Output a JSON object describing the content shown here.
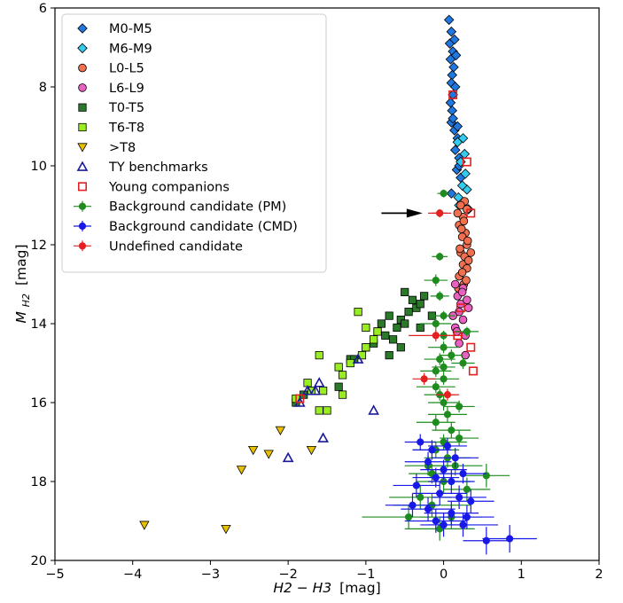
{
  "chart_data": {
    "type": "scatter",
    "xlabel_main": "H2 − H3",
    "xlabel_unit": "[mag]",
    "ylabel_main": "M",
    "ylabel_sub": "H2",
    "ylabel_unit": "[mag]",
    "xlim": [
      -5,
      2
    ],
    "ylim": [
      20,
      6
    ],
    "y_inverted": true,
    "x_ticks": [
      "−5",
      "−4",
      "−3",
      "−2",
      "−1",
      "0",
      "1",
      "2"
    ],
    "x_tick_values": [
      -5,
      -4,
      -3,
      -2,
      -1,
      0,
      1,
      2
    ],
    "y_ticks": [
      "6",
      "8",
      "10",
      "12",
      "14",
      "16",
      "18",
      "20"
    ],
    "y_tick_values": [
      6,
      8,
      10,
      12,
      14,
      16,
      18,
      20
    ],
    "grid": false,
    "legend_position": "top-left",
    "annotation": {
      "type": "arrow",
      "direction": "right",
      "from": [
        -0.8,
        11.2
      ],
      "to": [
        -0.27,
        11.2
      ]
    },
    "series": [
      {
        "name": "M0-M5",
        "marker": "diamond",
        "color": "#1f77e0",
        "points": [
          [
            0.07,
            6.3
          ],
          [
            0.1,
            6.6
          ],
          [
            0.08,
            6.9
          ],
          [
            0.12,
            7.1
          ],
          [
            0.09,
            7.3
          ],
          [
            0.13,
            7.5
          ],
          [
            0.11,
            7.7
          ],
          [
            0.1,
            7.9
          ],
          [
            0.15,
            8.0
          ],
          [
            0.12,
            8.2
          ],
          [
            0.09,
            8.4
          ],
          [
            0.11,
            8.6
          ],
          [
            0.1,
            8.9
          ],
          [
            0.14,
            9.1
          ],
          [
            0.18,
            9.3
          ],
          [
            0.15,
            9.6
          ],
          [
            0.2,
            9.8
          ],
          [
            0.17,
            10.1
          ],
          [
            0.22,
            10.3
          ],
          [
            0.1,
            10.7
          ],
          [
            0.14,
            6.8
          ],
          [
            0.16,
            7.2
          ],
          [
            0.12,
            8.8
          ],
          [
            0.18,
            9.0
          ],
          [
            0.2,
            10.0
          ]
        ]
      },
      {
        "name": "M6-M9",
        "marker": "diamond",
        "color": "#33ccee",
        "points": [
          [
            0.18,
            9.4
          ],
          [
            0.25,
            9.3
          ],
          [
            0.22,
            9.9
          ],
          [
            0.28,
            10.2
          ],
          [
            0.3,
            10.6
          ],
          [
            0.24,
            10.5
          ],
          [
            0.2,
            11.0
          ],
          [
            0.32,
            11.1
          ],
          [
            0.27,
            9.7
          ],
          [
            0.19,
            10.8
          ]
        ]
      },
      {
        "name": "L0-L5",
        "marker": "circle",
        "color": "#f07050",
        "points": [
          [
            0.27,
            10.9
          ],
          [
            0.22,
            11.0
          ],
          [
            0.3,
            11.1
          ],
          [
            0.25,
            11.3
          ],
          [
            0.2,
            11.5
          ],
          [
            0.28,
            11.7
          ],
          [
            0.24,
            11.8
          ],
          [
            0.3,
            12.0
          ],
          [
            0.22,
            12.2
          ],
          [
            0.27,
            12.3
          ],
          [
            0.25,
            12.5
          ],
          [
            0.3,
            12.6
          ],
          [
            0.2,
            12.8
          ],
          [
            0.26,
            13.0
          ],
          [
            0.32,
            12.4
          ],
          [
            0.18,
            11.2
          ],
          [
            0.29,
            12.9
          ],
          [
            0.23,
            11.6
          ],
          [
            0.31,
            11.9
          ],
          [
            0.21,
            12.1
          ],
          [
            0.35,
            12.2
          ],
          [
            0.26,
            11.4
          ],
          [
            0.24,
            12.7
          ],
          [
            0.19,
            13.1
          ]
        ]
      },
      {
        "name": "L6-L9",
        "marker": "circle",
        "color": "#e860c0",
        "points": [
          [
            0.15,
            13.0
          ],
          [
            0.25,
            13.1
          ],
          [
            0.18,
            13.3
          ],
          [
            0.22,
            13.5
          ],
          [
            0.3,
            13.4
          ],
          [
            0.2,
            13.7
          ],
          [
            0.12,
            13.8
          ],
          [
            0.25,
            13.9
          ],
          [
            0.15,
            14.1
          ],
          [
            0.28,
            14.3
          ],
          [
            0.2,
            14.5
          ],
          [
            0.28,
            14.8
          ],
          [
            0.32,
            13.6
          ],
          [
            0.17,
            14.2
          ],
          [
            0.24,
            13.2
          ]
        ]
      },
      {
        "name": "T0-T5",
        "marker": "square",
        "color": "#2a7a2a",
        "points": [
          [
            -0.5,
            13.2
          ],
          [
            -0.4,
            13.4
          ],
          [
            -0.35,
            13.6
          ],
          [
            -0.45,
            13.7
          ],
          [
            -0.55,
            13.9
          ],
          [
            -0.6,
            14.1
          ],
          [
            -0.7,
            13.8
          ],
          [
            -0.8,
            14.0
          ],
          [
            -0.75,
            14.3
          ],
          [
            -0.9,
            14.5
          ],
          [
            -0.85,
            14.2
          ],
          [
            -1.0,
            14.6
          ],
          [
            -0.65,
            14.4
          ],
          [
            -0.7,
            14.8
          ],
          [
            -1.2,
            14.9
          ],
          [
            -1.35,
            15.6
          ],
          [
            -1.8,
            15.8
          ],
          [
            -1.9,
            16.0
          ],
          [
            -1.15,
            14.9
          ],
          [
            -0.5,
            14.0
          ],
          [
            -0.3,
            13.5
          ],
          [
            -0.15,
            13.8
          ],
          [
            -0.25,
            13.3
          ],
          [
            -0.55,
            14.6
          ],
          [
            -0.3,
            14.1
          ]
        ]
      },
      {
        "name": "T6-T8",
        "marker": "square",
        "color": "#99ee22",
        "points": [
          [
            -1.1,
            13.7
          ],
          [
            -1.0,
            14.1
          ],
          [
            -0.85,
            14.2
          ],
          [
            -0.9,
            14.4
          ],
          [
            -1.0,
            14.6
          ],
          [
            -1.05,
            14.8
          ],
          [
            -1.2,
            15.0
          ],
          [
            -1.35,
            15.1
          ],
          [
            -1.6,
            14.8
          ],
          [
            -1.3,
            15.3
          ],
          [
            -1.3,
            15.8
          ],
          [
            -1.6,
            16.2
          ],
          [
            -1.5,
            16.2
          ],
          [
            -1.55,
            15.7
          ],
          [
            -1.7,
            15.7
          ],
          [
            -1.75,
            15.5
          ],
          [
            -1.9,
            15.9
          ]
        ]
      },
      {
        "name": ">T8",
        "marker": "triangle-down",
        "color": "#e8c000",
        "points": [
          [
            -2.1,
            16.7
          ],
          [
            -1.7,
            17.2
          ],
          [
            -2.25,
            17.3
          ],
          [
            -2.45,
            17.2
          ],
          [
            -2.6,
            17.7
          ],
          [
            -3.85,
            19.1
          ],
          [
            -2.8,
            19.2
          ]
        ]
      },
      {
        "name": "TY benchmarks",
        "marker": "triangle-up",
        "color": "#1a1a9a",
        "hollow": true,
        "points": [
          [
            -1.1,
            14.9
          ],
          [
            -1.6,
            15.5
          ],
          [
            -1.65,
            15.7
          ],
          [
            -1.75,
            15.7
          ],
          [
            -1.85,
            16.0
          ],
          [
            -0.9,
            16.2
          ],
          [
            -1.55,
            16.9
          ],
          [
            -2.0,
            17.4
          ]
        ]
      },
      {
        "name": "Young companions",
        "marker": "square",
        "color": "#e62020",
        "hollow": true,
        "points": [
          [
            0.12,
            8.2
          ],
          [
            0.3,
            9.9
          ],
          [
            0.35,
            11.2
          ],
          [
            0.22,
            13.6
          ],
          [
            0.18,
            14.3
          ],
          [
            0.35,
            14.6
          ],
          [
            0.38,
            15.2
          ],
          [
            -1.85,
            15.9
          ]
        ]
      },
      {
        "name": "Background candidate (PM)",
        "marker": "circle-err",
        "color": "#1e8c1e",
        "points": [
          [
            0.0,
            10.7,
            0.08,
            0.1
          ],
          [
            -0.05,
            11.2,
            0.1,
            0.1
          ],
          [
            -0.05,
            12.3,
            0.1,
            0.1
          ],
          [
            -0.1,
            12.9,
            0.15,
            0.15
          ],
          [
            -0.05,
            13.3,
            0.12,
            0.12
          ],
          [
            0.0,
            13.8,
            0.15,
            0.12
          ],
          [
            -0.1,
            14.0,
            0.2,
            0.15
          ],
          [
            0.0,
            14.3,
            0.15,
            0.12
          ],
          [
            0.0,
            14.6,
            0.2,
            0.15
          ],
          [
            -0.05,
            14.9,
            0.2,
            0.15
          ],
          [
            0.0,
            15.1,
            0.15,
            0.15
          ],
          [
            0.0,
            15.4,
            0.2,
            0.15
          ],
          [
            -0.1,
            15.6,
            0.25,
            0.15
          ],
          [
            -0.05,
            15.8,
            0.2,
            0.15
          ],
          [
            0.0,
            16.0,
            0.2,
            0.2
          ],
          [
            0.05,
            16.3,
            0.25,
            0.2
          ],
          [
            -0.1,
            16.5,
            0.25,
            0.2
          ],
          [
            0.1,
            16.7,
            0.25,
            0.2
          ],
          [
            0.0,
            17.0,
            0.3,
            0.2
          ],
          [
            -0.1,
            17.2,
            0.3,
            0.2
          ],
          [
            0.05,
            17.4,
            0.3,
            0.25
          ],
          [
            0.15,
            17.6,
            0.35,
            0.25
          ],
          [
            -0.15,
            17.8,
            0.3,
            0.25
          ],
          [
            0.0,
            18.0,
            0.35,
            0.3
          ],
          [
            0.55,
            17.85,
            0.3,
            0.3
          ],
          [
            -0.3,
            18.4,
            0.4,
            0.3
          ],
          [
            -0.15,
            18.6,
            0.5,
            0.3
          ],
          [
            -0.45,
            18.9,
            0.6,
            0.3
          ],
          [
            0.1,
            18.9,
            0.4,
            0.3
          ],
          [
            0.2,
            16.1,
            0.2,
            0.15
          ],
          [
            0.25,
            15.0,
            0.15,
            0.15
          ],
          [
            0.3,
            14.2,
            0.15,
            0.12
          ],
          [
            -0.1,
            15.2,
            0.2,
            0.15
          ],
          [
            0.1,
            14.8,
            0.15,
            0.15
          ],
          [
            0.2,
            16.9,
            0.25,
            0.2
          ],
          [
            -0.2,
            17.6,
            0.3,
            0.25
          ],
          [
            0.3,
            18.2,
            0.3,
            0.3
          ],
          [
            -0.05,
            19.2,
            0.45,
            0.3
          ]
        ]
      },
      {
        "name": "Background candidate (CMD)",
        "marker": "circle-err",
        "color": "#1818e8",
        "points": [
          [
            -0.3,
            17.0,
            0.2,
            0.2
          ],
          [
            -0.15,
            17.2,
            0.25,
            0.25
          ],
          [
            0.05,
            17.1,
            0.25,
            0.2
          ],
          [
            -0.2,
            17.5,
            0.3,
            0.25
          ],
          [
            0.15,
            17.4,
            0.3,
            0.25
          ],
          [
            0.0,
            17.7,
            0.3,
            0.25
          ],
          [
            0.25,
            17.8,
            0.3,
            0.25
          ],
          [
            -0.1,
            17.9,
            0.3,
            0.25
          ],
          [
            0.1,
            18.0,
            0.3,
            0.3
          ],
          [
            -0.35,
            18.1,
            0.3,
            0.3
          ],
          [
            -0.05,
            18.3,
            0.35,
            0.3
          ],
          [
            0.2,
            18.4,
            0.35,
            0.3
          ],
          [
            0.35,
            18.5,
            0.3,
            0.3
          ],
          [
            -0.4,
            18.6,
            0.35,
            0.3
          ],
          [
            -0.2,
            18.7,
            0.35,
            0.3
          ],
          [
            0.1,
            18.8,
            0.35,
            0.3
          ],
          [
            0.3,
            18.9,
            0.35,
            0.3
          ],
          [
            -0.1,
            19.0,
            0.4,
            0.3
          ],
          [
            0.25,
            19.1,
            0.45,
            0.3
          ],
          [
            0.55,
            19.5,
            0.3,
            0.35
          ],
          [
            0.85,
            19.45,
            0.35,
            0.35
          ],
          [
            0.0,
            19.1,
            0.3,
            0.3
          ]
        ]
      },
      {
        "name": "Undefined candidate",
        "marker": "circle-err",
        "color": "#e62020",
        "points": [
          [
            -0.05,
            11.2,
            0.15,
            0.1
          ],
          [
            -0.1,
            14.3,
            0.35,
            0.15
          ],
          [
            -0.25,
            15.4,
            0.15,
            0.15
          ],
          [
            0.05,
            15.8,
            0.15,
            0.15
          ]
        ]
      }
    ]
  },
  "colors": {
    "axis": "#000000",
    "legend_border": "#cccccc",
    "arrow": "#000000"
  }
}
